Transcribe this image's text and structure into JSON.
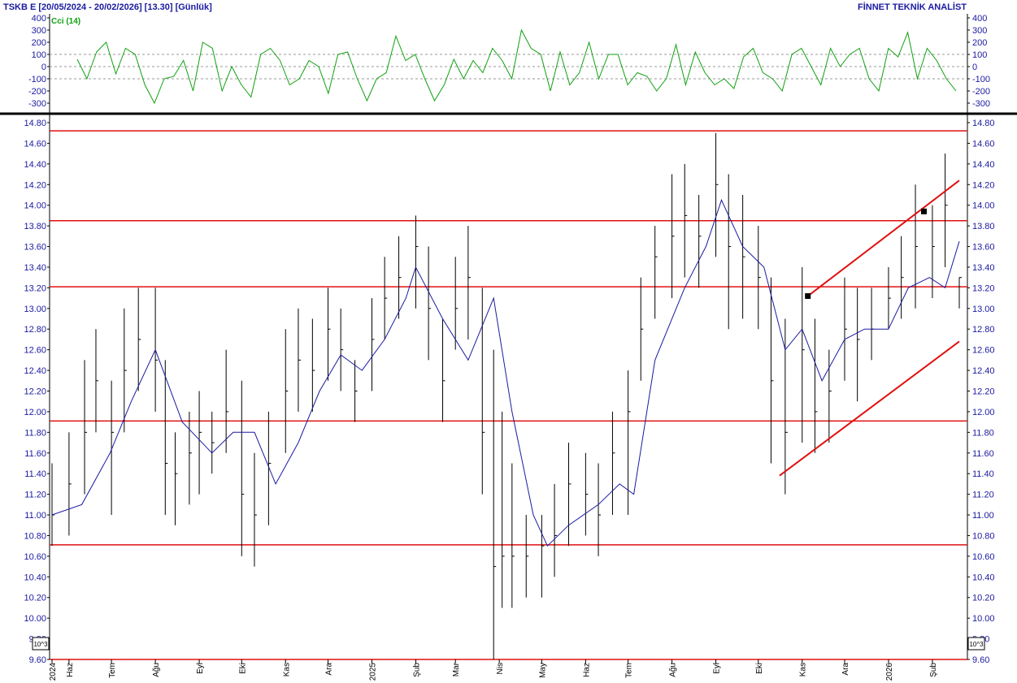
{
  "header": {
    "left": "TSKB  E  [20/05/2024 - 20/02/2026]  [13.30]  [Günlük]",
    "right": "FİNNET TEKNİK ANALİST"
  },
  "indicator": {
    "label": "Cci (14)",
    "color": "#10a010",
    "ticks": [
      "400",
      "300",
      "200",
      "100",
      "0",
      "-100",
      "-200",
      "-300"
    ]
  },
  "scale_badge": "10^3",
  "colors": {
    "price_bars": "#000000",
    "moving_average": "#1a1aa0",
    "levels": "#e01010",
    "axis_text": "#1a1aa0"
  },
  "chart_data": [
    {
      "type": "line",
      "title": "Cci (14)",
      "ylim": [
        -400,
        400
      ],
      "gridlines": [
        -100,
        0,
        100
      ],
      "x_range": [
        "2024-05-20",
        "2026-02-20"
      ],
      "series": [
        {
          "name": "Cci (14)",
          "values": [
            60,
            -100,
            120,
            200,
            -60,
            150,
            100,
            -150,
            -300,
            -100,
            -80,
            50,
            -200,
            200,
            150,
            -200,
            0,
            -150,
            -250,
            100,
            150,
            50,
            -150,
            -100,
            50,
            0,
            -220,
            100,
            120,
            -100,
            -280,
            -100,
            -50,
            250,
            50,
            100,
            -100,
            -280,
            -150,
            60,
            -100,
            50,
            -50,
            150,
            50,
            -100,
            300,
            150,
            100,
            -200,
            120,
            -150,
            -50,
            200,
            -100,
            100,
            100,
            -150,
            -50,
            -80,
            -200,
            -100,
            180,
            -150,
            120,
            -50,
            -150,
            -100,
            -180,
            80,
            150,
            -50,
            -100,
            -200,
            100,
            150,
            0,
            -150,
            150,
            0,
            100,
            150,
            -100,
            -200,
            150,
            80,
            280,
            -100,
            150,
            50,
            -100,
            -200
          ]
        }
      ]
    },
    {
      "type": "candlestick",
      "title": "TSKB",
      "ylim": [
        9.6,
        14.8
      ],
      "y_ticks": [
        "14.80",
        "14.60",
        "14.40",
        "14.20",
        "14.00",
        "13.80",
        "13.60",
        "13.40",
        "13.20",
        "13.00",
        "12.80",
        "12.60",
        "12.40",
        "12.20",
        "12.00",
        "11.80",
        "11.60",
        "11.40",
        "11.20",
        "11.00",
        "10.80",
        "10.60",
        "10.40",
        "10.20",
        "10.00",
        "9.80",
        "9.60"
      ],
      "x_tick_labels": [
        "2024",
        "Haz",
        "Tem",
        "Ağu",
        "Eyl",
        "Eki",
        "Kas",
        "Ara",
        "2025",
        "Şub",
        "Mar",
        "Nis",
        "May",
        "Haz",
        "Tem",
        "Ağu",
        "Eyl",
        "Eki",
        "Kas",
        "Ara",
        "2026",
        "Şub"
      ],
      "x_tick_dates": [
        "2024-05-20",
        "2024-06-01",
        "2024-07-01",
        "2024-08-01",
        "2024-09-01",
        "2024-10-01",
        "2024-11-01",
        "2024-12-01",
        "2025-01-01",
        "2025-02-01",
        "2025-03-01",
        "2025-04-01",
        "2025-05-01",
        "2025-06-01",
        "2025-07-01",
        "2025-08-01",
        "2025-09-01",
        "2025-10-01",
        "2025-11-01",
        "2025-12-01",
        "2026-01-01",
        "2026-02-01"
      ],
      "last_close": 13.3,
      "horizontal_levels": [
        14.72,
        13.85,
        13.21,
        11.91,
        10.71,
        9.6
      ],
      "trendlines": [
        {
          "from": {
            "date": "2025-10-16",
            "price": 11.38
          },
          "to": {
            "date": "2026-02-20",
            "price": 12.68
          }
        },
        {
          "from": {
            "date": "2025-11-05",
            "price": 13.12
          },
          "to": {
            "date": "2026-02-20",
            "price": 14.24
          }
        }
      ],
      "markers": [
        {
          "date": "2025-11-05",
          "price": 13.12
        },
        {
          "date": "2026-01-26",
          "price": 13.94
        }
      ],
      "series": [
        {
          "name": "Price",
          "kind": "hlc_bars",
          "dates": [
            "2024-05-20",
            "2024-06-01",
            "2024-06-12",
            "2024-06-20",
            "2024-07-01",
            "2024-07-10",
            "2024-07-20",
            "2024-08-01",
            "2024-08-08",
            "2024-08-15",
            "2024-08-25",
            "2024-09-01",
            "2024-09-10",
            "2024-09-20",
            "2024-10-01",
            "2024-10-10",
            "2024-10-20",
            "2024-11-01",
            "2024-11-10",
            "2024-11-20",
            "2024-12-01",
            "2024-12-10",
            "2024-12-20",
            "2025-01-01",
            "2025-01-10",
            "2025-01-20",
            "2025-02-01",
            "2025-02-10",
            "2025-02-20",
            "2025-03-01",
            "2025-03-10",
            "2025-03-20",
            "2025-03-28",
            "2025-04-03",
            "2025-04-10",
            "2025-04-20",
            "2025-05-01",
            "2025-05-10",
            "2025-05-20",
            "2025-06-01",
            "2025-06-10",
            "2025-06-20",
            "2025-07-01",
            "2025-07-10",
            "2025-07-20",
            "2025-08-01",
            "2025-08-10",
            "2025-08-20",
            "2025-09-01",
            "2025-09-10",
            "2025-09-20",
            "2025-10-01",
            "2025-10-10",
            "2025-10-20",
            "2025-11-01",
            "2025-11-10",
            "2025-11-20",
            "2025-12-01",
            "2025-12-10",
            "2025-12-20",
            "2026-01-01",
            "2026-01-10",
            "2026-01-20",
            "2026-02-01",
            "2026-02-10",
            "2026-02-20"
          ],
          "high": [
            11.5,
            11.8,
            12.5,
            12.8,
            12.3,
            13.0,
            13.2,
            13.2,
            12.5,
            11.8,
            12.0,
            12.2,
            12.0,
            12.6,
            12.3,
            11.6,
            12.0,
            12.8,
            13.0,
            12.9,
            13.2,
            13.0,
            12.5,
            13.1,
            13.5,
            13.7,
            13.9,
            13.6,
            12.9,
            13.5,
            13.8,
            13.2,
            12.6,
            12.0,
            11.5,
            11.0,
            11.0,
            11.3,
            11.7,
            11.6,
            11.5,
            12.0,
            12.4,
            13.3,
            13.8,
            14.3,
            14.4,
            14.1,
            14.7,
            14.3,
            14.1,
            13.8,
            13.3,
            12.9,
            13.4,
            12.9,
            12.6,
            13.3,
            13.2,
            13.2,
            13.4,
            13.7,
            14.2,
            14.0,
            14.5,
            13.3
          ],
          "low": [
            10.7,
            10.8,
            11.2,
            11.8,
            11.0,
            11.8,
            12.2,
            12.0,
            11.0,
            10.9,
            11.1,
            11.2,
            11.4,
            11.6,
            10.6,
            10.5,
            10.9,
            11.6,
            12.0,
            12.0,
            12.3,
            12.2,
            11.9,
            12.2,
            12.7,
            12.9,
            13.0,
            12.5,
            11.9,
            12.6,
            12.7,
            11.2,
            9.6,
            10.1,
            10.1,
            10.2,
            10.2,
            10.4,
            10.7,
            10.8,
            10.6,
            11.0,
            11.0,
            12.3,
            12.9,
            13.1,
            13.3,
            13.2,
            13.5,
            12.8,
            12.9,
            12.8,
            11.5,
            11.2,
            11.7,
            11.6,
            11.7,
            12.3,
            12.1,
            12.5,
            12.8,
            12.9,
            13.0,
            13.1,
            13.4,
            13.0
          ],
          "close": [
            11.0,
            11.3,
            11.8,
            12.3,
            11.8,
            12.4,
            12.7,
            12.5,
            11.5,
            11.4,
            11.6,
            11.8,
            11.7,
            12.0,
            11.2,
            11.0,
            11.5,
            12.2,
            12.5,
            12.4,
            12.8,
            12.6,
            12.2,
            12.7,
            13.1,
            13.3,
            13.6,
            13.0,
            12.3,
            13.0,
            13.3,
            11.8,
            10.5,
            10.6,
            10.6,
            10.6,
            10.7,
            10.8,
            11.3,
            11.2,
            11.0,
            11.6,
            12.0,
            12.8,
            13.5,
            13.7,
            13.9,
            13.7,
            14.2,
            13.6,
            13.5,
            13.3,
            12.3,
            11.8,
            12.6,
            12.0,
            12.2,
            12.8,
            12.7,
            12.8,
            13.1,
            13.3,
            13.6,
            13.6,
            14.0,
            13.3
          ]
        },
        {
          "name": "Moving Average",
          "dates": [
            "2024-05-20",
            "2024-06-10",
            "2024-06-30",
            "2024-07-15",
            "2024-08-01",
            "2024-08-20",
            "2024-09-10",
            "2024-09-25",
            "2024-10-10",
            "2024-10-25",
            "2024-11-10",
            "2024-11-25",
            "2024-12-10",
            "2024-12-25",
            "2025-01-10",
            "2025-01-25",
            "2025-02-01",
            "2025-02-20",
            "2025-03-10",
            "2025-03-28",
            "2025-04-10",
            "2025-04-25",
            "2025-05-05",
            "2025-05-20",
            "2025-06-10",
            "2025-06-25",
            "2025-07-05",
            "2025-07-20",
            "2025-08-10",
            "2025-08-25",
            "2025-09-05",
            "2025-09-20",
            "2025-10-05",
            "2025-10-20",
            "2025-11-01",
            "2025-11-15",
            "2025-12-01",
            "2025-12-15",
            "2026-01-01",
            "2026-01-15",
            "2026-01-30",
            "2026-02-10",
            "2026-02-20"
          ],
          "values": [
            11.0,
            11.1,
            11.6,
            12.1,
            12.6,
            11.9,
            11.6,
            11.8,
            11.8,
            11.3,
            11.7,
            12.2,
            12.55,
            12.4,
            12.7,
            13.1,
            13.4,
            12.9,
            12.5,
            13.1,
            12.0,
            11.0,
            10.7,
            10.9,
            11.1,
            11.3,
            11.2,
            12.5,
            13.2,
            13.6,
            14.05,
            13.6,
            13.4,
            12.6,
            12.8,
            12.3,
            12.7,
            12.8,
            12.8,
            13.2,
            13.3,
            13.2,
            13.65
          ]
        }
      ]
    }
  ]
}
